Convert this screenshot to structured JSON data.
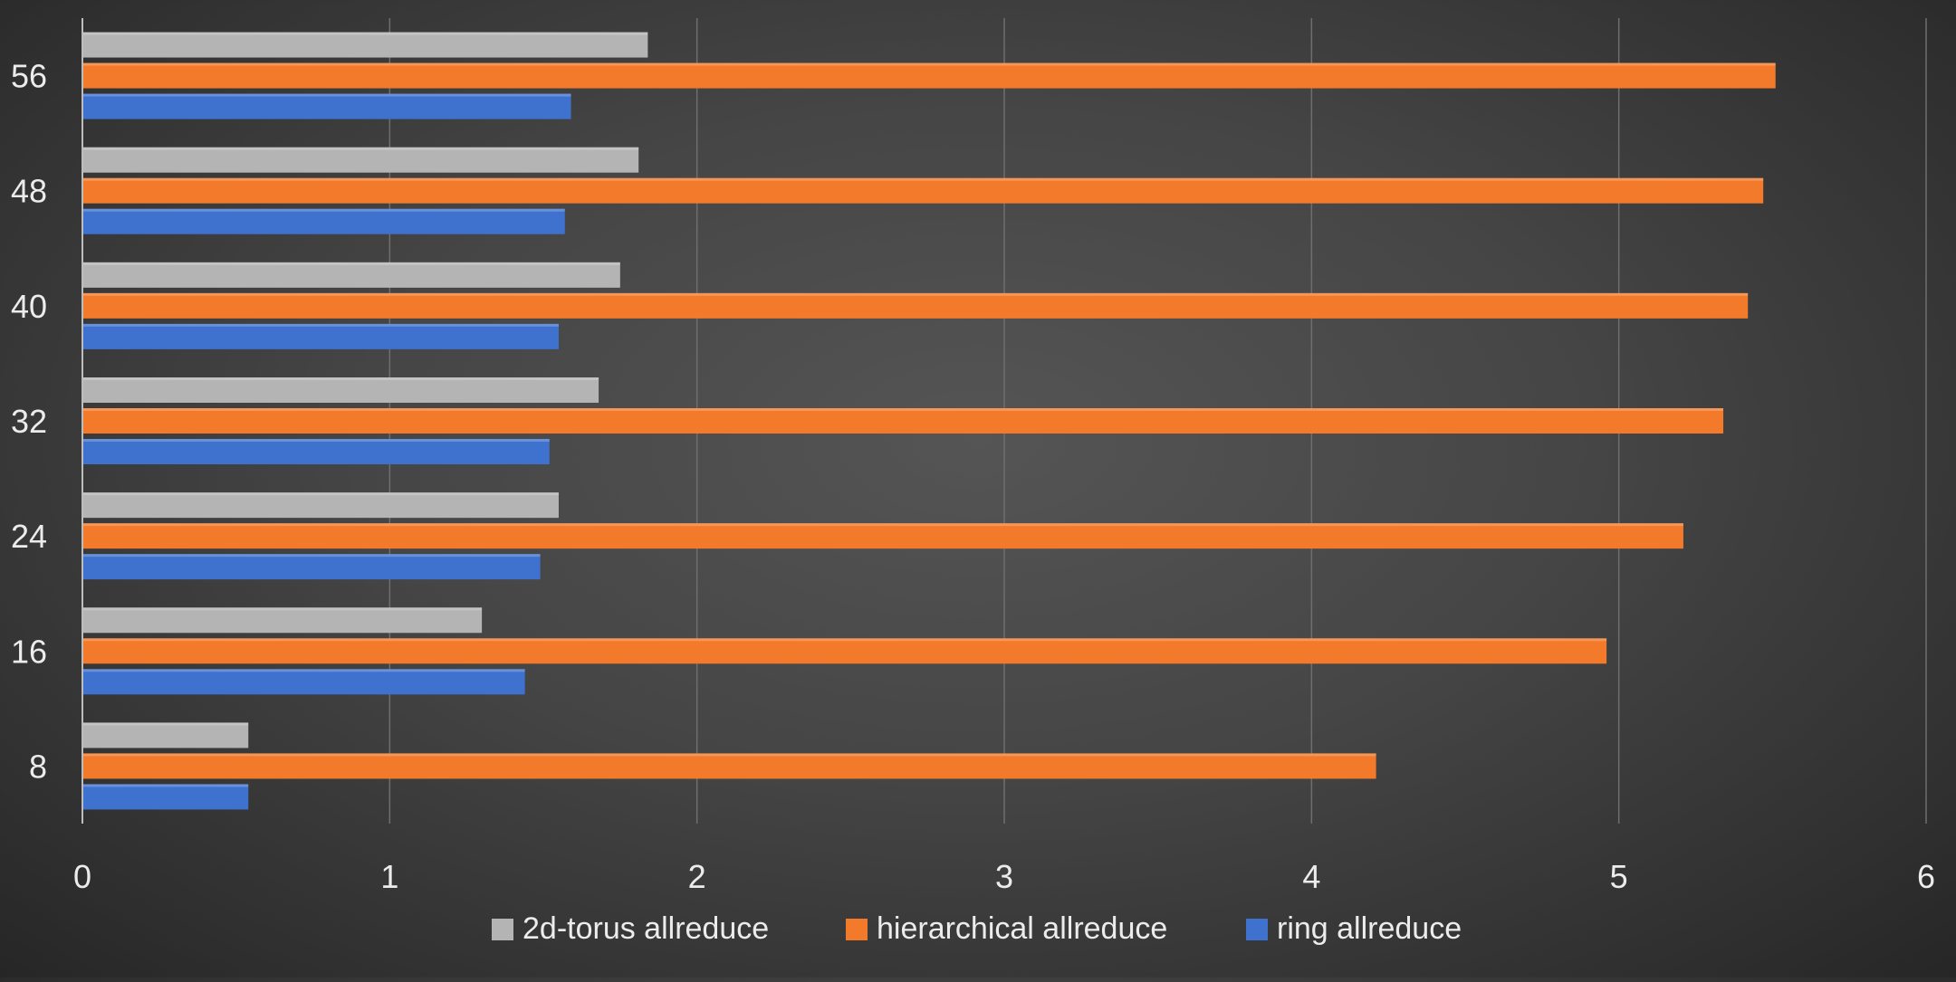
{
  "chart_data": {
    "type": "bar",
    "orientation": "horizontal",
    "title": "",
    "xlabel": "",
    "ylabel": "",
    "categories": [
      "8",
      "16",
      "24",
      "32",
      "40",
      "48",
      "56"
    ],
    "xlim": [
      0,
      6
    ],
    "x_ticks": [
      "0",
      "1",
      "2",
      "3",
      "4",
      "5",
      "6"
    ],
    "grid": "vertical",
    "legend_position": "bottom",
    "series": [
      {
        "name": "2d-torus allreduce",
        "color": "#b4b4b4",
        "values": [
          0.54,
          1.3,
          1.55,
          1.68,
          1.75,
          1.81,
          1.84
        ]
      },
      {
        "name": "hierarchical allreduce",
        "color": "#f27a2a",
        "values": [
          4.21,
          4.96,
          5.21,
          5.34,
          5.42,
          5.47,
          5.51
        ]
      },
      {
        "name": "ring allreduce",
        "color": "#3f72cf",
        "values": [
          0.54,
          1.44,
          1.49,
          1.52,
          1.55,
          1.57,
          1.59
        ]
      }
    ]
  }
}
